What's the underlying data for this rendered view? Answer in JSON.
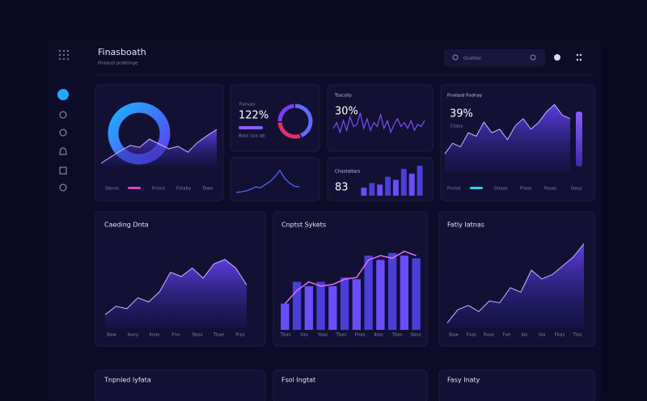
{
  "header": {
    "title": "Finasboath",
    "subtitle": "Fineasd prabtinge",
    "search": "Quatbar"
  },
  "cards": {
    "overview": {
      "legend": [
        "Sbnns",
        "Fnnns",
        "Fstaby",
        "Taws"
      ],
      "chart": {
        "type": "area",
        "values": [
          5,
          18,
          30,
          42,
          38,
          55,
          45,
          35,
          40,
          28,
          48,
          62,
          75
        ],
        "ylim": [
          0,
          100
        ],
        "color": "#8a5cff"
      }
    },
    "ratio": {
      "title": "Fonvas",
      "value": "122%",
      "caption": "Basc sco ab",
      "chart": {
        "type": "donut",
        "values": [
          45,
          30,
          25
        ],
        "colors": [
          "#5b6cff",
          "#e0306a",
          "#7b3df5"
        ]
      }
    },
    "trend": {
      "chart": {
        "type": "line",
        "values": [
          10,
          12,
          15,
          20,
          28,
          25,
          35,
          45,
          60,
          80,
          55,
          40,
          30,
          28
        ],
        "ylim": [
          0,
          100
        ],
        "color": "#5b6cff"
      }
    },
    "activity": {
      "title": "Tsscsity",
      "value": "30%",
      "chart": {
        "type": "line",
        "values": [
          40,
          55,
          30,
          60,
          35,
          70,
          45,
          50,
          80,
          40,
          65,
          35,
          55,
          45,
          75,
          40,
          60,
          30,
          50,
          65,
          45,
          55,
          40,
          60,
          35,
          50,
          45,
          60
        ],
        "ylim": [
          0,
          100
        ],
        "color": "#7b4dff"
      }
    },
    "stack": {
      "title": "Chastaltars",
      "value": "83",
      "chart": {
        "type": "bar",
        "values": [
          25,
          40,
          35,
          60,
          50,
          85,
          70,
          95
        ],
        "ylim": [
          0,
          100
        ],
        "color": "#4b3fd9"
      }
    },
    "revenue": {
      "title": "Fnnlasd Fodnay",
      "value": "39%",
      "caption": "Ctasy",
      "legend": [
        "Fnnsd",
        "Dasas",
        "Ftass",
        "Fasas",
        "Dasy"
      ],
      "chart": {
        "type": "area",
        "values": [
          25,
          40,
          35,
          55,
          50,
          70,
          55,
          60,
          45,
          65,
          75,
          60,
          70,
          85,
          95,
          80,
          75
        ],
        "ylim": [
          0,
          100
        ],
        "color": "#8a5cff"
      }
    },
    "mid1": {
      "title": "Caeding Dnta",
      "x_labels": [
        "Baw",
        "Aavy",
        "Ilnas",
        "Fnn",
        "Sbas",
        "Tbae",
        "Fras"
      ],
      "chart": {
        "type": "area",
        "values": [
          15,
          25,
          22,
          35,
          30,
          42,
          65,
          60,
          70,
          58,
          75,
          80,
          70,
          50
        ],
        "ylim": [
          0,
          100
        ],
        "color": "#6a4dff"
      }
    },
    "mid2": {
      "title": "Cnptst Sykets",
      "x_labels": [
        "Tbas",
        "Ilas",
        "Yaas",
        "Tbas",
        "Fnas",
        "Ibas",
        "Tbas",
        "Sbas"
      ],
      "chart": {
        "type": "barline",
        "values": [
          30,
          55,
          50,
          55,
          50,
          60,
          58,
          85,
          80,
          88,
          85,
          82
        ],
        "line": [
          30,
          45,
          55,
          50,
          52,
          58,
          60,
          80,
          85,
          82,
          90,
          85
        ],
        "ylim": [
          0,
          100
        ],
        "color": "#4b3fd9"
      }
    },
    "mid3": {
      "title": "Fatly Iatnas",
      "x_labels": [
        "Baw",
        "Fxas",
        "Rxas",
        "Fxe",
        "Ias",
        "Iaa",
        "Fkas",
        "Tlas"
      ],
      "chart": {
        "type": "area",
        "values": [
          5,
          20,
          25,
          18,
          30,
          28,
          45,
          40,
          65,
          55,
          60,
          70,
          80,
          95
        ],
        "ylim": [
          0,
          100
        ],
        "color": "#5b4dff"
      }
    },
    "bottom": {
      "titles": [
        "Tnpnled Iyfata",
        "Fsol Ingtat",
        "Fasy Inaty"
      ]
    }
  }
}
